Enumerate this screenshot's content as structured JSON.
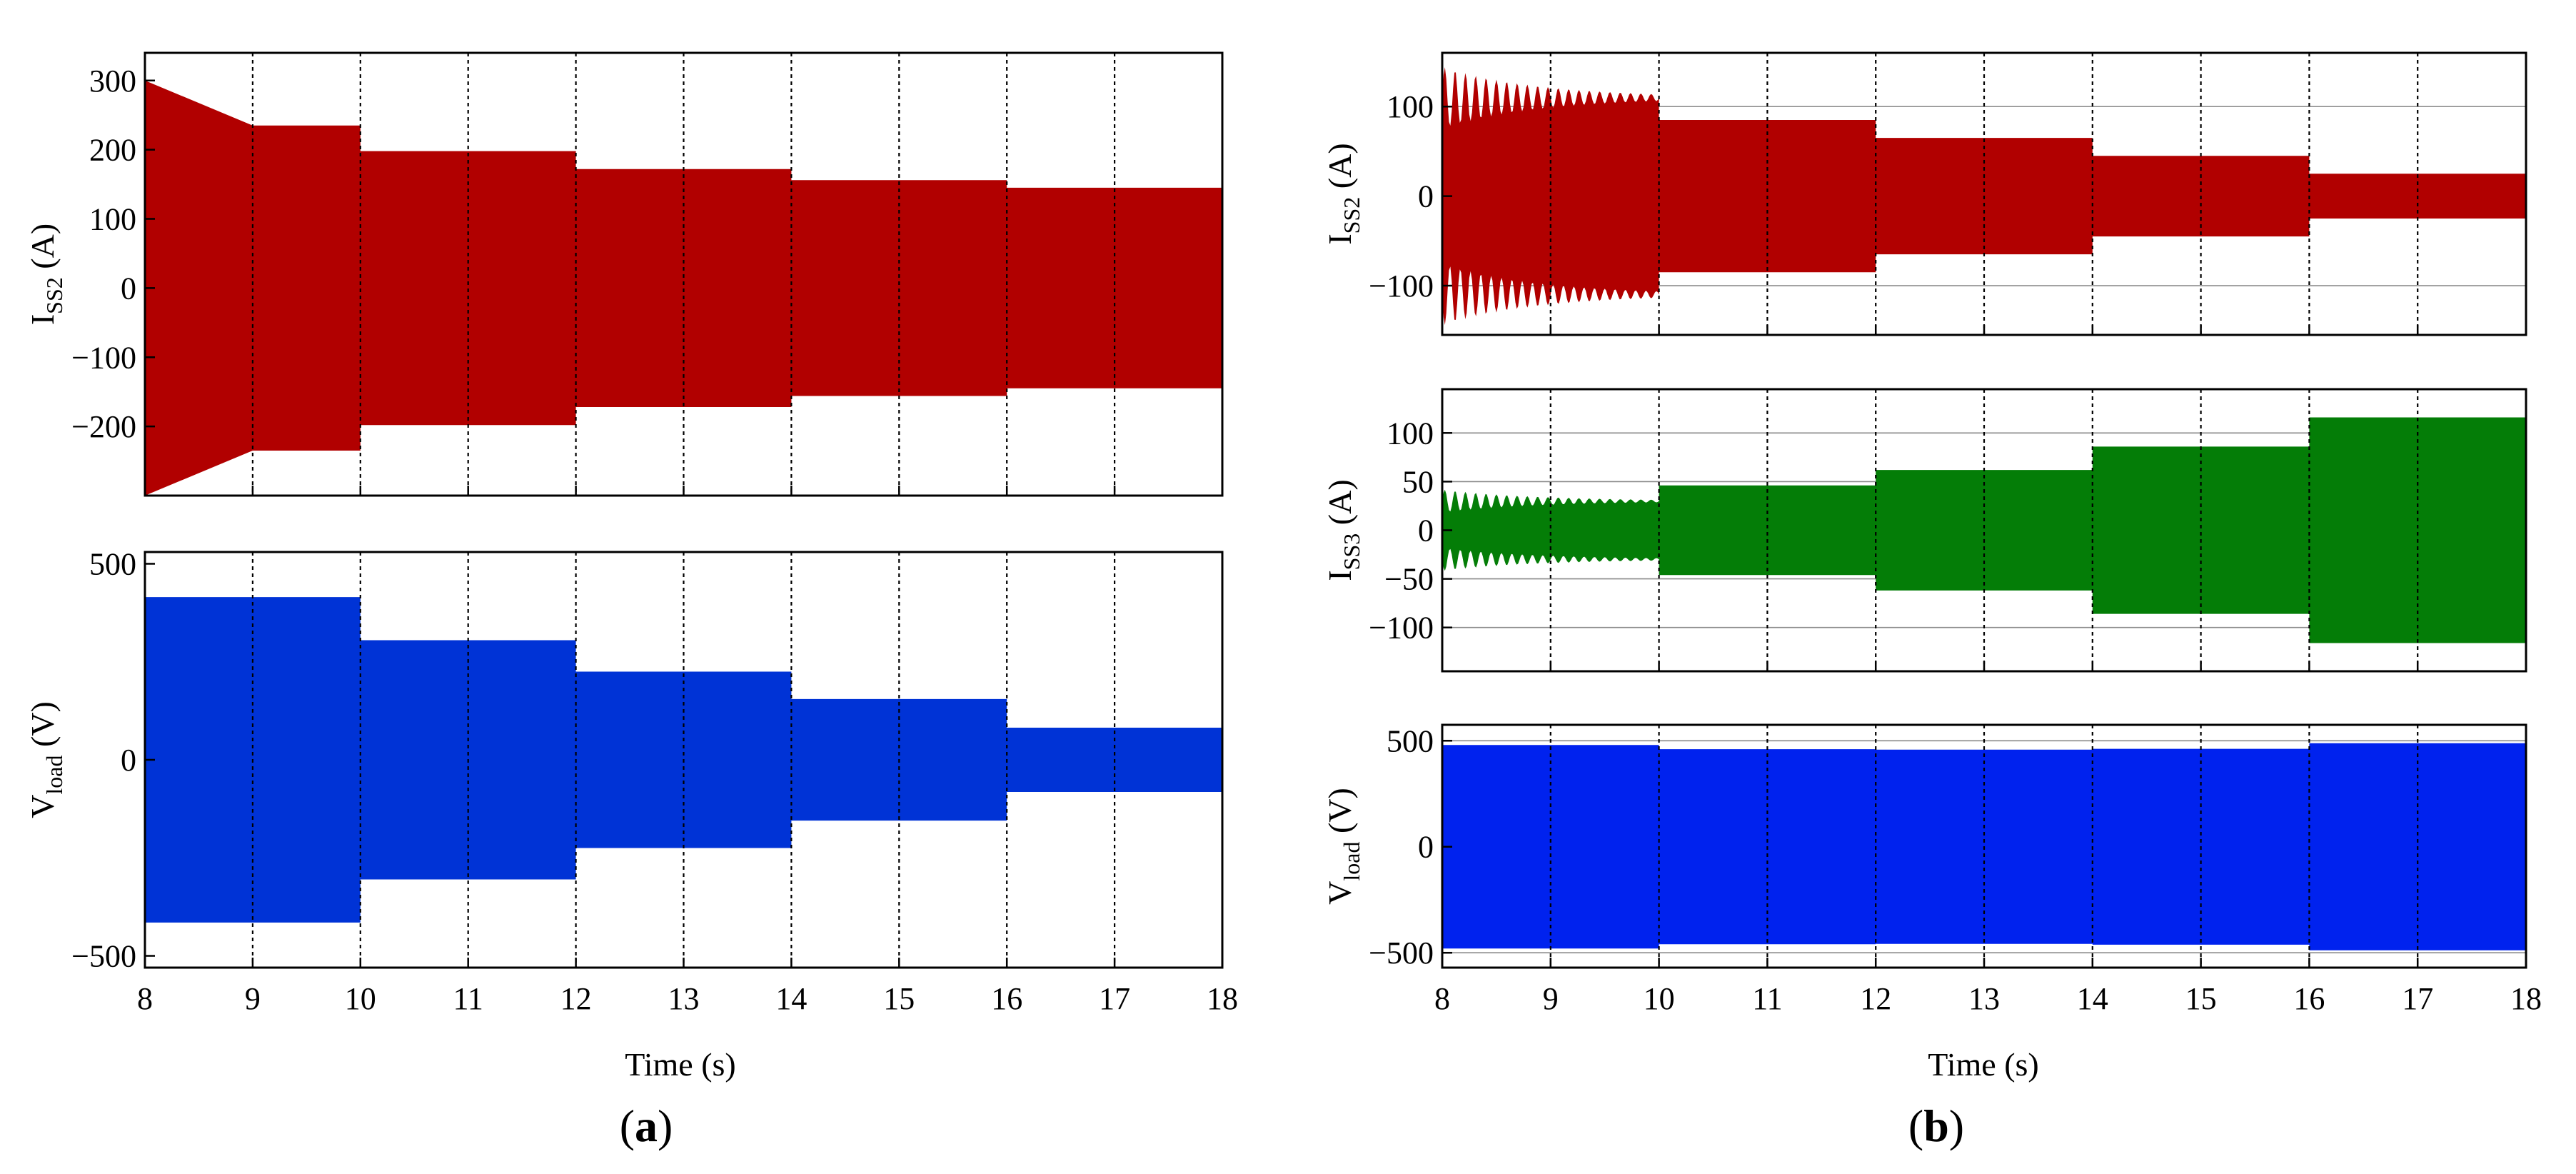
{
  "panels": [
    {
      "letter": "a",
      "xlabel": "Time (s)"
    },
    {
      "letter": "b",
      "xlabel": "Time (s)"
    }
  ],
  "chart_data": [
    {
      "type": "area",
      "panel": "a",
      "ylabel_main": "I",
      "ylabel_sub": "SS2",
      "ylabel_unit": " (A)",
      "color": "#b10000",
      "x": [
        8,
        10,
        12,
        14,
        16,
        18
      ],
      "xlim": [
        8,
        18
      ],
      "xticks": [
        8,
        9,
        10,
        11,
        12,
        13,
        14,
        15,
        16,
        17,
        18
      ],
      "ylim": [
        -300,
        340
      ],
      "yticks": [
        300,
        200,
        100,
        0,
        -100,
        -200
      ],
      "envelope_segments": [
        {
          "x": [
            8,
            10
          ],
          "amp_start": 300,
          "amp": 235
        },
        {
          "x": [
            10,
            12
          ],
          "amp": 198
        },
        {
          "x": [
            12,
            14
          ],
          "amp": 172
        },
        {
          "x": [
            14,
            16
          ],
          "amp": 156
        },
        {
          "x": [
            16,
            18
          ],
          "amp": 145
        }
      ],
      "grid": {
        "x": true,
        "y": false
      }
    },
    {
      "type": "area",
      "panel": "a",
      "ylabel_main": "V",
      "ylabel_sub": "load",
      "ylabel_unit": " (V)",
      "color": "#0033d6",
      "xlim": [
        8,
        18
      ],
      "xticks": [
        8,
        9,
        10,
        11,
        12,
        13,
        14,
        15,
        16,
        17,
        18
      ],
      "ylim": [
        -530,
        530
      ],
      "yticks": [
        500,
        0,
        -500
      ],
      "envelope_segments": [
        {
          "x": [
            8,
            10
          ],
          "amp": 415
        },
        {
          "x": [
            10,
            12
          ],
          "amp": 305
        },
        {
          "x": [
            12,
            14
          ],
          "amp": 225
        },
        {
          "x": [
            14,
            16
          ],
          "amp": 155
        },
        {
          "x": [
            16,
            18
          ],
          "amp": 82
        }
      ],
      "grid": {
        "x": true,
        "y": false
      }
    },
    {
      "type": "area",
      "panel": "b",
      "ylabel_main": "I",
      "ylabel_sub": "SS2",
      "ylabel_unit": " (A)",
      "color": "#b10000",
      "xlim": [
        8,
        18
      ],
      "xticks": [
        8,
        9,
        10,
        11,
        12,
        13,
        14,
        15,
        16,
        17,
        18
      ],
      "ylim": [
        -155,
        160
      ],
      "yticks": [
        100,
        0,
        -100
      ],
      "envelope_segments": [
        {
          "x": [
            8,
            10
          ],
          "amp": 110,
          "ripple": 35
        },
        {
          "x": [
            10,
            12
          ],
          "amp": 85
        },
        {
          "x": [
            12,
            14
          ],
          "amp": 65
        },
        {
          "x": [
            14,
            16
          ],
          "amp": 45
        },
        {
          "x": [
            16,
            18
          ],
          "amp": 25
        }
      ],
      "grid": {
        "x": true,
        "y": true
      }
    },
    {
      "type": "area",
      "panel": "b",
      "ylabel_main": "I",
      "ylabel_sub": "SS3",
      "ylabel_unit": " (A)",
      "color": "#047d07",
      "xlim": [
        8,
        18
      ],
      "xticks": [
        8,
        9,
        10,
        11,
        12,
        13,
        14,
        15,
        16,
        17,
        18
      ],
      "ylim": [
        -145,
        145
      ],
      "yticks": [
        100,
        50,
        0,
        -50,
        -100
      ],
      "envelope_segments": [
        {
          "x": [
            8,
            10
          ],
          "amp": 30,
          "ripple": 12
        },
        {
          "x": [
            10,
            12
          ],
          "amp": 46
        },
        {
          "x": [
            12,
            14
          ],
          "amp": 62
        },
        {
          "x": [
            14,
            16
          ],
          "amp": 86
        },
        {
          "x": [
            16,
            18
          ],
          "amp": 116
        }
      ],
      "grid": {
        "x": true,
        "y": true
      }
    },
    {
      "type": "area",
      "panel": "b",
      "ylabel_main": "V",
      "ylabel_sub": "load",
      "ylabel_unit": " (V)",
      "color": "#0022ee",
      "xlim": [
        8,
        18
      ],
      "xticks": [
        8,
        9,
        10,
        11,
        12,
        13,
        14,
        15,
        16,
        17,
        18
      ],
      "ylim": [
        -570,
        575
      ],
      "yticks": [
        500,
        0,
        -500
      ],
      "envelope_segments": [
        {
          "x": [
            8,
            10
          ],
          "amp": 480
        },
        {
          "x": [
            10,
            12
          ],
          "amp": 460
        },
        {
          "x": [
            12,
            14
          ],
          "amp": 458
        },
        {
          "x": [
            14,
            16
          ],
          "amp": 462
        },
        {
          "x": [
            16,
            18
          ],
          "amp": 488
        }
      ],
      "grid": {
        "x": true,
        "y": true
      }
    }
  ]
}
